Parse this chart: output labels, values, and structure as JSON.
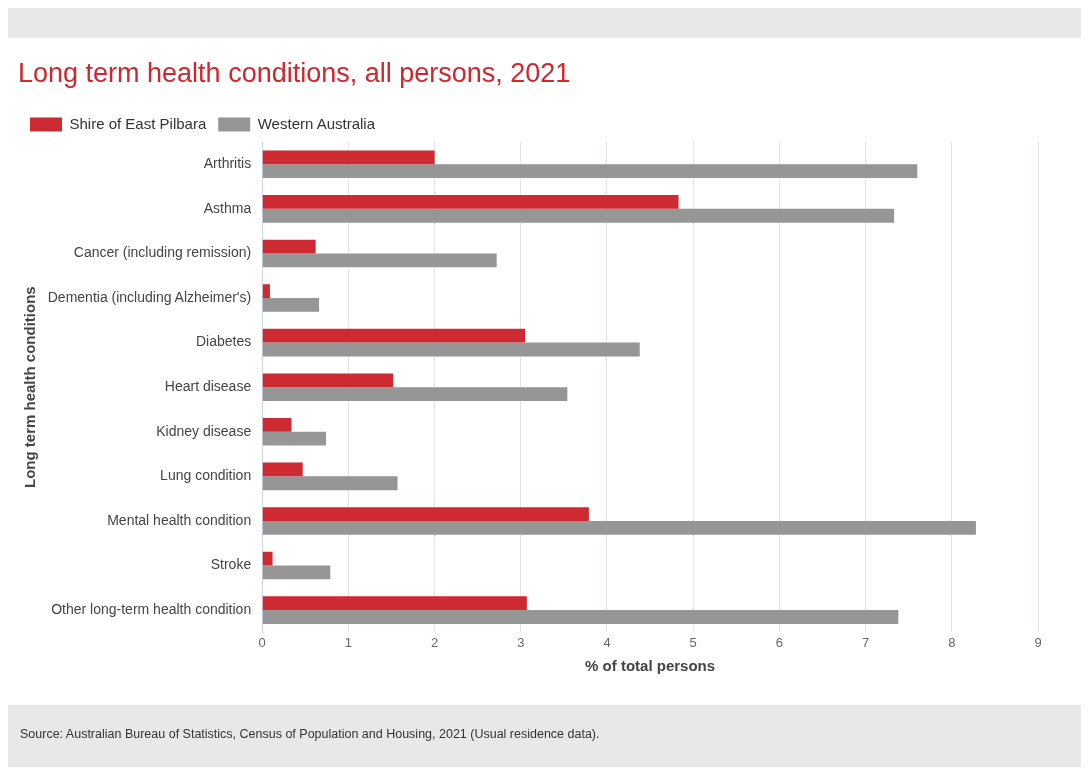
{
  "chart_data": {
    "type": "bar",
    "orientation": "horizontal",
    "title": "Long term health conditions, all persons, 2021",
    "categories": [
      "Arthritis",
      "Asthma",
      "Cancer (including remission)",
      "Dementia (including Alzheimer's)",
      "Diabetes",
      "Heart disease",
      "Kidney disease",
      "Lung condition",
      "Mental health condition",
      "Stroke",
      "Other long-term health condition"
    ],
    "series": [
      {
        "name": "Shire of East Pilbara",
        "color": "#cd2a31",
        "values": [
          2.0,
          4.83,
          0.62,
          0.09,
          3.05,
          1.52,
          0.34,
          0.47,
          3.79,
          0.12,
          3.07
        ]
      },
      {
        "name": "Western Australia",
        "color": "#969696",
        "values": [
          7.6,
          7.33,
          2.72,
          0.66,
          4.38,
          3.54,
          0.74,
          1.57,
          8.28,
          0.79,
          7.38
        ]
      }
    ],
    "xlabel": "% of total persons",
    "ylabel": "Long term health conditions",
    "xlim": [
      0,
      9
    ],
    "xticks": [
      0,
      1,
      2,
      3,
      4,
      5,
      6,
      7,
      8,
      9
    ],
    "grid": "x",
    "legend": "top left",
    "annotations": [
      "Source: Australian Bureau of Statistics, Census of Population and Housing, 2021 (Usual residence data)."
    ]
  }
}
